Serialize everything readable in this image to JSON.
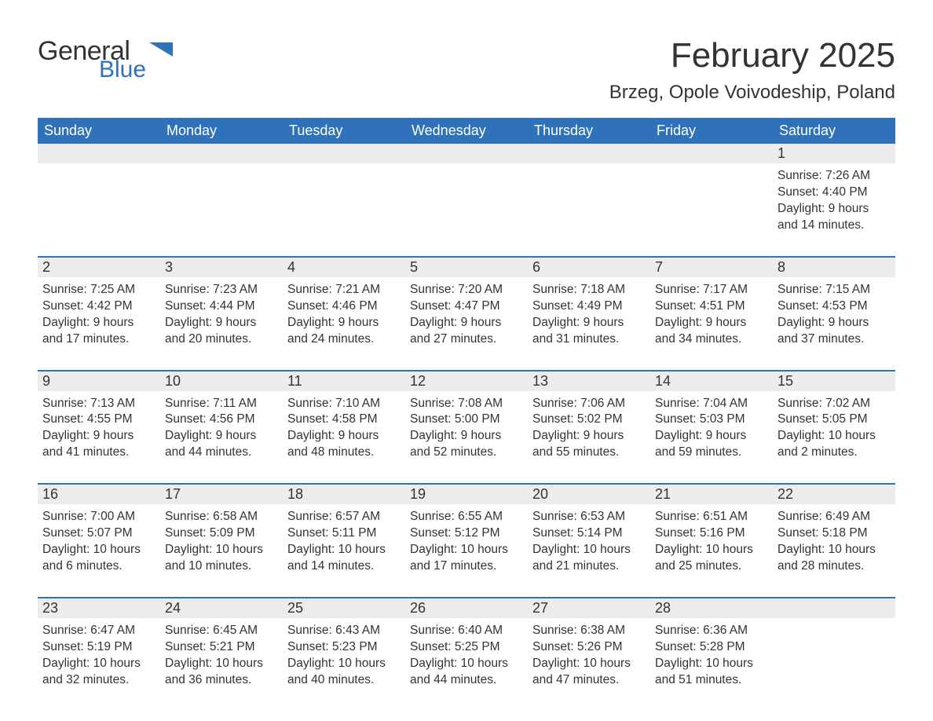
{
  "logo": {
    "general": "General",
    "blue": "Blue",
    "mark_color": "#2f72b9"
  },
  "title": "February 2025",
  "location": "Brzeg, Opole Voivodeship, Poland",
  "colors": {
    "header_bg": "#2f72b9",
    "header_text": "#ffffff",
    "row_divider": "#2f72b9",
    "daynum_bg": "#ececec",
    "text": "#333333",
    "background": "#ffffff"
  },
  "typography": {
    "title_fontsize_pt": 33,
    "location_fontsize_pt": 18,
    "weekday_fontsize_pt": 14,
    "cell_fontsize_pt": 12
  },
  "calendar": {
    "weekdays": [
      "Sunday",
      "Monday",
      "Tuesday",
      "Wednesday",
      "Thursday",
      "Friday",
      "Saturday"
    ],
    "weeks": [
      {
        "nums": [
          "",
          "",
          "",
          "",
          "",
          "",
          "1"
        ],
        "cells": [
          null,
          null,
          null,
          null,
          null,
          null,
          {
            "sunrise": "Sunrise: 7:26 AM",
            "sunset": "Sunset: 4:40 PM",
            "day1": "Daylight: 9 hours",
            "day2": "and 14 minutes."
          }
        ]
      },
      {
        "nums": [
          "2",
          "3",
          "4",
          "5",
          "6",
          "7",
          "8"
        ],
        "cells": [
          {
            "sunrise": "Sunrise: 7:25 AM",
            "sunset": "Sunset: 4:42 PM",
            "day1": "Daylight: 9 hours",
            "day2": "and 17 minutes."
          },
          {
            "sunrise": "Sunrise: 7:23 AM",
            "sunset": "Sunset: 4:44 PM",
            "day1": "Daylight: 9 hours",
            "day2": "and 20 minutes."
          },
          {
            "sunrise": "Sunrise: 7:21 AM",
            "sunset": "Sunset: 4:46 PM",
            "day1": "Daylight: 9 hours",
            "day2": "and 24 minutes."
          },
          {
            "sunrise": "Sunrise: 7:20 AM",
            "sunset": "Sunset: 4:47 PM",
            "day1": "Daylight: 9 hours",
            "day2": "and 27 minutes."
          },
          {
            "sunrise": "Sunrise: 7:18 AM",
            "sunset": "Sunset: 4:49 PM",
            "day1": "Daylight: 9 hours",
            "day2": "and 31 minutes."
          },
          {
            "sunrise": "Sunrise: 7:17 AM",
            "sunset": "Sunset: 4:51 PM",
            "day1": "Daylight: 9 hours",
            "day2": "and 34 minutes."
          },
          {
            "sunrise": "Sunrise: 7:15 AM",
            "sunset": "Sunset: 4:53 PM",
            "day1": "Daylight: 9 hours",
            "day2": "and 37 minutes."
          }
        ]
      },
      {
        "nums": [
          "9",
          "10",
          "11",
          "12",
          "13",
          "14",
          "15"
        ],
        "cells": [
          {
            "sunrise": "Sunrise: 7:13 AM",
            "sunset": "Sunset: 4:55 PM",
            "day1": "Daylight: 9 hours",
            "day2": "and 41 minutes."
          },
          {
            "sunrise": "Sunrise: 7:11 AM",
            "sunset": "Sunset: 4:56 PM",
            "day1": "Daylight: 9 hours",
            "day2": "and 44 minutes."
          },
          {
            "sunrise": "Sunrise: 7:10 AM",
            "sunset": "Sunset: 4:58 PM",
            "day1": "Daylight: 9 hours",
            "day2": "and 48 minutes."
          },
          {
            "sunrise": "Sunrise: 7:08 AM",
            "sunset": "Sunset: 5:00 PM",
            "day1": "Daylight: 9 hours",
            "day2": "and 52 minutes."
          },
          {
            "sunrise": "Sunrise: 7:06 AM",
            "sunset": "Sunset: 5:02 PM",
            "day1": "Daylight: 9 hours",
            "day2": "and 55 minutes."
          },
          {
            "sunrise": "Sunrise: 7:04 AM",
            "sunset": "Sunset: 5:03 PM",
            "day1": "Daylight: 9 hours",
            "day2": "and 59 minutes."
          },
          {
            "sunrise": "Sunrise: 7:02 AM",
            "sunset": "Sunset: 5:05 PM",
            "day1": "Daylight: 10 hours",
            "day2": "and 2 minutes."
          }
        ]
      },
      {
        "nums": [
          "16",
          "17",
          "18",
          "19",
          "20",
          "21",
          "22"
        ],
        "cells": [
          {
            "sunrise": "Sunrise: 7:00 AM",
            "sunset": "Sunset: 5:07 PM",
            "day1": "Daylight: 10 hours",
            "day2": "and 6 minutes."
          },
          {
            "sunrise": "Sunrise: 6:58 AM",
            "sunset": "Sunset: 5:09 PM",
            "day1": "Daylight: 10 hours",
            "day2": "and 10 minutes."
          },
          {
            "sunrise": "Sunrise: 6:57 AM",
            "sunset": "Sunset: 5:11 PM",
            "day1": "Daylight: 10 hours",
            "day2": "and 14 minutes."
          },
          {
            "sunrise": "Sunrise: 6:55 AM",
            "sunset": "Sunset: 5:12 PM",
            "day1": "Daylight: 10 hours",
            "day2": "and 17 minutes."
          },
          {
            "sunrise": "Sunrise: 6:53 AM",
            "sunset": "Sunset: 5:14 PM",
            "day1": "Daylight: 10 hours",
            "day2": "and 21 minutes."
          },
          {
            "sunrise": "Sunrise: 6:51 AM",
            "sunset": "Sunset: 5:16 PM",
            "day1": "Daylight: 10 hours",
            "day2": "and 25 minutes."
          },
          {
            "sunrise": "Sunrise: 6:49 AM",
            "sunset": "Sunset: 5:18 PM",
            "day1": "Daylight: 10 hours",
            "day2": "and 28 minutes."
          }
        ]
      },
      {
        "nums": [
          "23",
          "24",
          "25",
          "26",
          "27",
          "28",
          ""
        ],
        "cells": [
          {
            "sunrise": "Sunrise: 6:47 AM",
            "sunset": "Sunset: 5:19 PM",
            "day1": "Daylight: 10 hours",
            "day2": "and 32 minutes."
          },
          {
            "sunrise": "Sunrise: 6:45 AM",
            "sunset": "Sunset: 5:21 PM",
            "day1": "Daylight: 10 hours",
            "day2": "and 36 minutes."
          },
          {
            "sunrise": "Sunrise: 6:43 AM",
            "sunset": "Sunset: 5:23 PM",
            "day1": "Daylight: 10 hours",
            "day2": "and 40 minutes."
          },
          {
            "sunrise": "Sunrise: 6:40 AM",
            "sunset": "Sunset: 5:25 PM",
            "day1": "Daylight: 10 hours",
            "day2": "and 44 minutes."
          },
          {
            "sunrise": "Sunrise: 6:38 AM",
            "sunset": "Sunset: 5:26 PM",
            "day1": "Daylight: 10 hours",
            "day2": "and 47 minutes."
          },
          {
            "sunrise": "Sunrise: 6:36 AM",
            "sunset": "Sunset: 5:28 PM",
            "day1": "Daylight: 10 hours",
            "day2": "and 51 minutes."
          },
          null
        ]
      }
    ]
  }
}
